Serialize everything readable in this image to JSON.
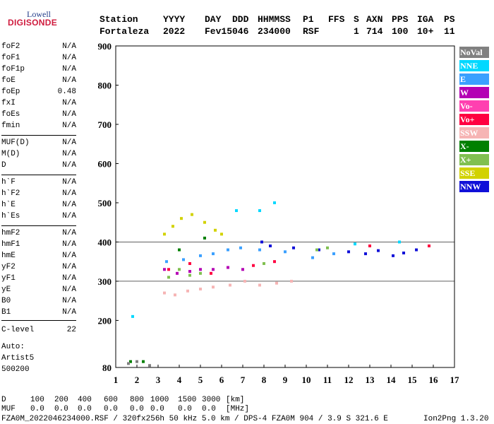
{
  "logo": {
    "line1": "Lowell",
    "line2": "DIGISONDE"
  },
  "header": {
    "labels": [
      {
        "key": "station",
        "label": "Station",
        "value": "Fortaleza"
      },
      {
        "key": "yyyy",
        "label": "YYYY",
        "value": "2022"
      },
      {
        "key": "day",
        "label": "DAY",
        "value": "Fev15"
      },
      {
        "key": "ddd",
        "label": "DDD",
        "value": "046"
      },
      {
        "key": "hhmmss",
        "label": "HHMMSS",
        "value": "234000"
      },
      {
        "key": "p1",
        "label": "P1",
        "value": "RSF"
      },
      {
        "key": "ffs",
        "label": "FFS",
        "value": ""
      },
      {
        "key": "s",
        "label": "S",
        "value": "1"
      },
      {
        "key": "axn",
        "label": "AXN",
        "value": "714"
      },
      {
        "key": "pps",
        "label": "PPS",
        "value": "100"
      },
      {
        "key": "iga",
        "label": "IGA",
        "value": "10+"
      },
      {
        "key": "ps",
        "label": "PS",
        "value": "11"
      }
    ]
  },
  "params": {
    "group1": [
      {
        "name": "foF2",
        "value": "N/A"
      },
      {
        "name": "foF1",
        "value": "N/A"
      },
      {
        "name": "foF1p",
        "value": "N/A"
      },
      {
        "name": "foE",
        "value": "N/A"
      },
      {
        "name": "foEp",
        "value": "0.48"
      },
      {
        "name": "fxI",
        "value": "N/A"
      },
      {
        "name": "foEs",
        "value": "N/A"
      },
      {
        "name": "fmin",
        "value": "N/A"
      }
    ],
    "group2": [
      {
        "name": "MUF(D)",
        "value": "N/A"
      },
      {
        "name": "M(D)",
        "value": "N/A"
      },
      {
        "name": "D",
        "value": "N/A"
      }
    ],
    "group3": [
      {
        "name": "h`F",
        "value": "N/A"
      },
      {
        "name": "h`F2",
        "value": "N/A"
      },
      {
        "name": "h`E",
        "value": "N/A"
      },
      {
        "name": "h`Es",
        "value": "N/A"
      }
    ],
    "group4": [
      {
        "name": "hmF2",
        "value": "N/A"
      },
      {
        "name": "hmF1",
        "value": "N/A"
      },
      {
        "name": "hmE",
        "value": "N/A"
      },
      {
        "name": "yF2",
        "value": "N/A"
      },
      {
        "name": "yF1",
        "value": "N/A"
      },
      {
        "name": "yE",
        "value": "N/A"
      },
      {
        "name": "B0",
        "value": "N/A"
      },
      {
        "name": "B1",
        "value": "N/A"
      }
    ],
    "group5": [
      {
        "name": "C-level",
        "value": "22"
      }
    ]
  },
  "autoscaling": {
    "line1": "Auto:",
    "line2": "Artist5",
    "line3": "500200"
  },
  "legend": [
    {
      "label": "NoVal",
      "color": "#808080"
    },
    {
      "label": "NNE",
      "color": "#00d8ff"
    },
    {
      "label": "E",
      "color": "#3aa0ff"
    },
    {
      "label": "W",
      "color": "#b400b4"
    },
    {
      "label": "Vo-",
      "color": "#ff40b0"
    },
    {
      "label": "Vo+",
      "color": "#ff0040"
    },
    {
      "label": "SSW",
      "color": "#f6b4b4"
    },
    {
      "label": "X-",
      "color": "#008000"
    },
    {
      "label": "X+",
      "color": "#80c050"
    },
    {
      "label": "SSE",
      "color": "#d2d200"
    },
    {
      "label": "NNW",
      "color": "#1010d8"
    }
  ],
  "footer": {
    "d_label": "D",
    "d_values": [
      "100",
      "200",
      "400",
      "600",
      "800",
      "1000",
      "1500",
      "3000",
      "[km]"
    ],
    "muf_label": "MUF",
    "muf_values": [
      "0.0",
      "0.0",
      "0.0",
      "0.0",
      "0.0",
      "0.0",
      "0.0",
      "0.0",
      "[MHz]"
    ],
    "info": "FZA0M_2022046234000.RSF / 320fx256h 50 kHz 5.0 km / DPS-4 FZA0M 904 / 3.9 S 321.6 E",
    "version": "Ion2Png 1.3.20"
  },
  "chart_data": {
    "type": "scatter",
    "title": "",
    "xlabel": "",
    "ylabel": "",
    "xlim": [
      1,
      17
    ],
    "ylim": [
      80,
      900
    ],
    "x_ticks": [
      1,
      2,
      3,
      4,
      5,
      6,
      7,
      8,
      9,
      10,
      11,
      12,
      13,
      14,
      15,
      16,
      17
    ],
    "y_ticks": [
      80,
      200,
      300,
      400,
      500,
      600,
      700,
      800,
      900
    ],
    "y_grid": [
      300,
      400
    ],
    "series": [
      {
        "name": "NNW",
        "x": [
          7.9,
          8.3,
          9.4,
          10.6,
          12.0,
          12.8,
          13.4,
          14.1,
          14.6,
          15.2
        ],
        "y": [
          400,
          390,
          385,
          380,
          375,
          370,
          378,
          365,
          372,
          380
        ]
      },
      {
        "name": "E",
        "x": [
          3.4,
          4.2,
          5.0,
          5.6,
          6.3,
          6.9,
          7.8,
          9.0,
          10.3,
          11.3
        ],
        "y": [
          350,
          355,
          365,
          370,
          380,
          385,
          380,
          375,
          360,
          370
        ]
      },
      {
        "name": "SSW",
        "x": [
          3.3,
          3.8,
          4.4,
          5.0,
          5.6,
          6.4,
          7.1,
          7.8,
          8.6,
          9.3
        ],
        "y": [
          270,
          265,
          275,
          280,
          285,
          290,
          300,
          290,
          295,
          300
        ]
      },
      {
        "name": "W",
        "x": [
          3.3,
          3.9,
          4.5,
          5.0,
          5.6,
          6.3,
          7.0
        ],
        "y": [
          330,
          320,
          325,
          330,
          330,
          335,
          330
        ]
      },
      {
        "name": "SSE",
        "x": [
          3.3,
          3.7,
          4.1,
          4.6,
          5.2,
          5.7,
          6.0
        ],
        "y": [
          420,
          440,
          460,
          470,
          450,
          430,
          420
        ]
      },
      {
        "name": "Vo+",
        "x": [
          3.5,
          4.5,
          5.5,
          7.5,
          8.5,
          13.0,
          15.8
        ],
        "y": [
          330,
          345,
          320,
          340,
          350,
          390,
          390
        ]
      },
      {
        "name": "X+",
        "x": [
          3.5,
          4.0,
          4.5,
          5.0,
          8.0,
          10.5,
          11.0
        ],
        "y": [
          310,
          330,
          315,
          320,
          345,
          380,
          385
        ]
      },
      {
        "name": "NNE",
        "x": [
          1.8,
          6.7,
          7.8,
          8.5,
          12.3,
          14.4
        ],
        "y": [
          210,
          480,
          480,
          500,
          395,
          400
        ]
      },
      {
        "name": "X-",
        "x": [
          1.7,
          2.3,
          4.0,
          5.2
        ],
        "y": [
          95,
          95,
          380,
          410
        ]
      },
      {
        "name": "NoVal",
        "x": [
          1.6,
          2.0,
          2.6
        ],
        "y": [
          90,
          95,
          85
        ]
      }
    ]
  }
}
